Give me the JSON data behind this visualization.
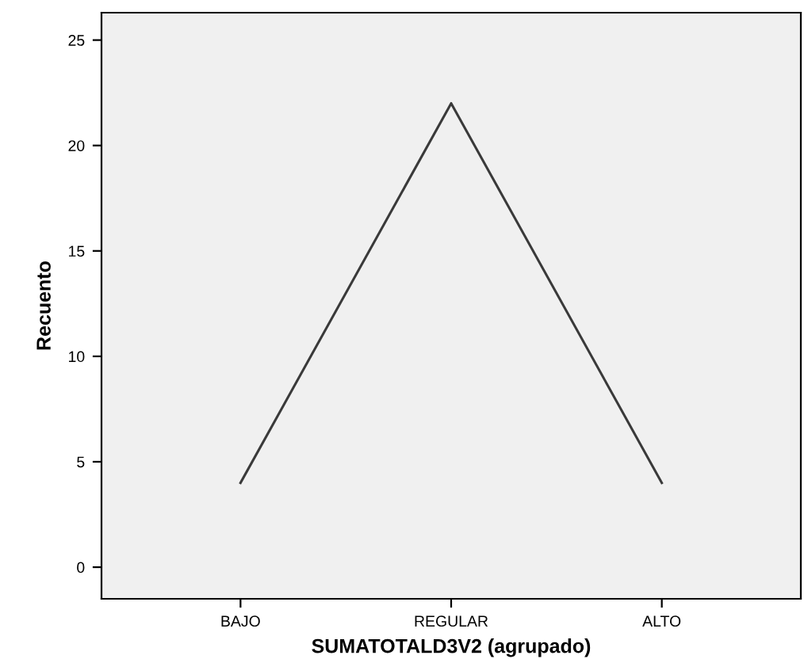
{
  "chart_data": {
    "type": "line",
    "xlabel": "SUMATOTALD3V2 (agrupado)",
    "ylabel": "Recuento",
    "categories": [
      "BAJO",
      "REGULAR",
      "ALTO"
    ],
    "series": [
      {
        "color": "#3a3a3a",
        "values": [
          4,
          22,
          4
        ]
      }
    ],
    "ylim": [
      -1.5,
      26.3
    ],
    "yticks": [
      0,
      5,
      10,
      15,
      20,
      25
    ],
    "grid": false,
    "marker": "none",
    "line_style": "solid"
  }
}
